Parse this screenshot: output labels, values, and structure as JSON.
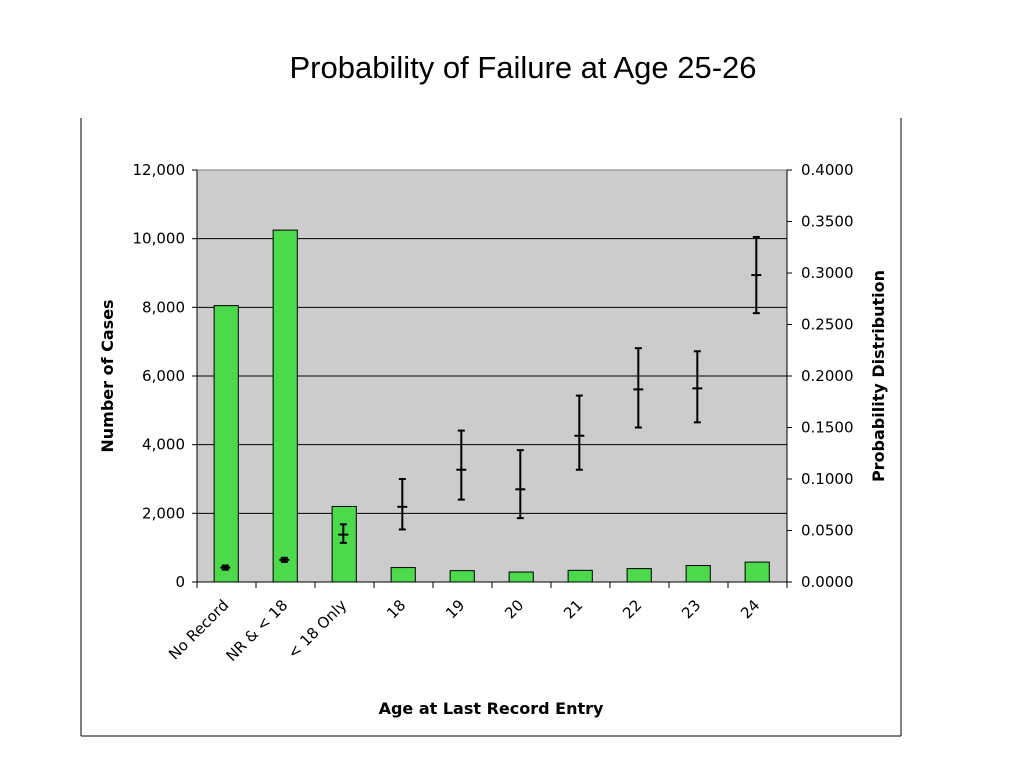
{
  "slide": {
    "title": "Probability of Failure at Age 25-26"
  },
  "colors": {
    "bar": "#4cd94c",
    "bar_outline": "#000000",
    "plot_background": "#cccccc",
    "error_bar": "#000000"
  },
  "chart_data": {
    "type": "bar",
    "xlabel": "Age at Last Record Entry",
    "ylabel": "Number of Cases",
    "y2label": "Probability Distribution",
    "ylim": [
      0,
      12000
    ],
    "y2lim": [
      0,
      0.4
    ],
    "yticks": [
      "0",
      "2,000",
      "4,000",
      "6,000",
      "8,000",
      "10,000",
      "12,000"
    ],
    "y2ticks": [
      "0.0000",
      "0.0500",
      "0.1000",
      "0.1500",
      "0.2000",
      "0.2500",
      "0.3000",
      "0.3500",
      "0.4000"
    ],
    "categories": [
      "No Record",
      "NR & < 18",
      "< 18 Only",
      "18",
      "19",
      "20",
      "21",
      "22",
      "23",
      "24"
    ],
    "grid": true,
    "series": [
      {
        "axis": "left",
        "type": "bar",
        "values": [
          8050,
          10250,
          2200,
          420,
          330,
          290,
          340,
          390,
          480,
          580
        ]
      },
      {
        "axis": "right",
        "type": "errorbar",
        "mean": [
          0.014,
          0.0215,
          0.046,
          0.073,
          0.109,
          0.09,
          0.142,
          0.187,
          0.188,
          0.298
        ],
        "lower": [
          0.012,
          0.0195,
          0.038,
          0.051,
          0.08,
          0.062,
          0.109,
          0.15,
          0.155,
          0.261
        ],
        "upper": [
          0.016,
          0.0235,
          0.056,
          0.1,
          0.147,
          0.128,
          0.181,
          0.227,
          0.224,
          0.335
        ]
      }
    ]
  }
}
